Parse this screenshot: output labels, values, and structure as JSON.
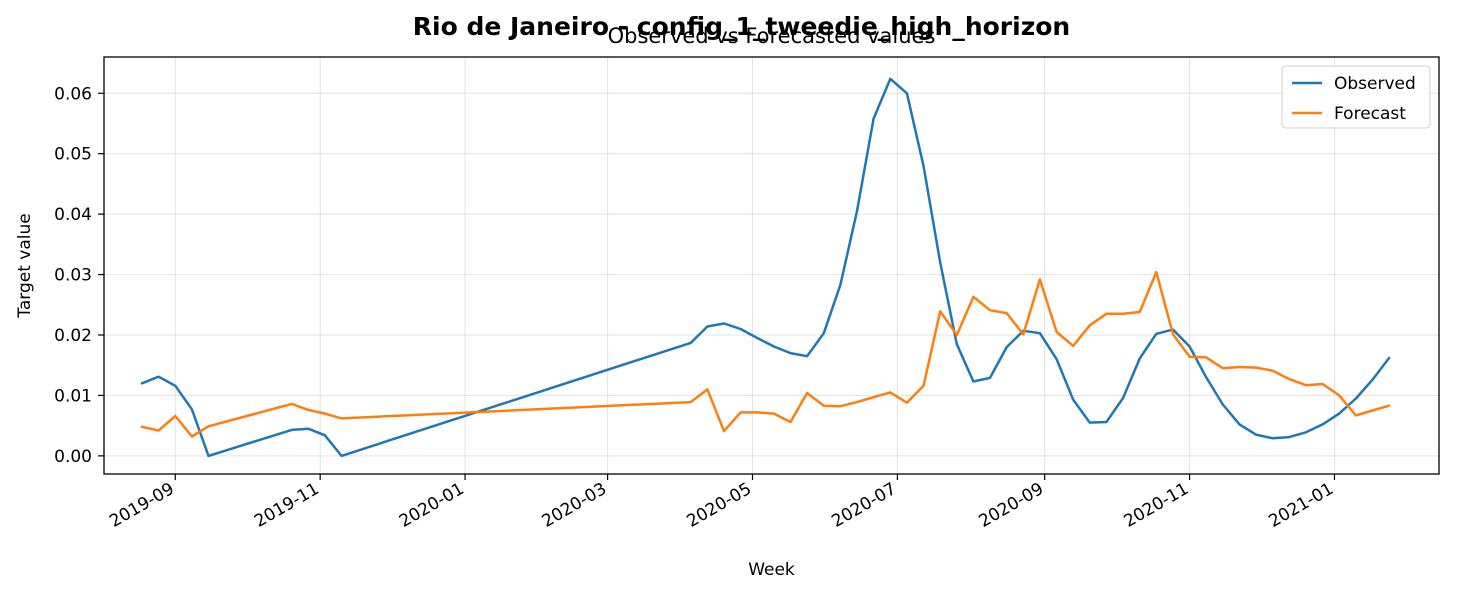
{
  "chart_data": {
    "type": "line",
    "title": "Rio de Janeiro - config_1_tweedie_high_horizon",
    "subtitle": "Observed vs Forecasted values",
    "xlabel": "Week",
    "ylabel": "Target value",
    "x_tick_labels": [
      "2019-09",
      "2019-11",
      "2020-01",
      "2020-03",
      "2020-05",
      "2020-07",
      "2020-09",
      "2020-11",
      "2021-01"
    ],
    "xlim": [
      "2019-08-02",
      "2021-02-14"
    ],
    "ylim": [
      -0.003,
      0.066
    ],
    "y_ticks": [
      0.0,
      0.01,
      0.02,
      0.03,
      0.04,
      0.05,
      0.06
    ],
    "y_tick_labels": [
      "0.00",
      "0.01",
      "0.02",
      "0.03",
      "0.04",
      "0.05",
      "0.06"
    ],
    "grid": true,
    "legend_position": "top-right",
    "series": [
      {
        "name": "Observed",
        "color": "#1f77b4",
        "points": [
          [
            "2019-08-18",
            0.012
          ],
          [
            "2019-08-25",
            0.0131
          ],
          [
            "2019-09-01",
            0.0116
          ],
          [
            "2019-09-08",
            0.0077
          ],
          [
            "2019-09-15",
            0.0
          ],
          [
            "2019-10-20",
            0.0043
          ],
          [
            "2019-10-27",
            0.0045
          ],
          [
            "2019-11-03",
            0.0034
          ],
          [
            "2019-11-10",
            0.0
          ],
          [
            "2020-04-05",
            0.0187
          ],
          [
            "2020-04-12",
            0.0214
          ],
          [
            "2020-04-19",
            0.0219
          ],
          [
            "2020-04-26",
            0.021
          ],
          [
            "2020-05-03",
            0.0195
          ],
          [
            "2020-05-10",
            0.0181
          ],
          [
            "2020-05-17",
            0.017
          ],
          [
            "2020-05-24",
            0.0165
          ],
          [
            "2020-05-31",
            0.0203
          ],
          [
            "2020-06-07",
            0.0283
          ],
          [
            "2020-06-14",
            0.0405
          ],
          [
            "2020-06-21",
            0.0558
          ],
          [
            "2020-06-28",
            0.0624
          ],
          [
            "2020-07-05",
            0.06
          ],
          [
            "2020-07-12",
            0.048
          ],
          [
            "2020-07-19",
            0.032
          ],
          [
            "2020-07-26",
            0.0185
          ],
          [
            "2020-08-02",
            0.0123
          ],
          [
            "2020-08-09",
            0.0129
          ],
          [
            "2020-08-16",
            0.018
          ],
          [
            "2020-08-23",
            0.0207
          ],
          [
            "2020-08-30",
            0.0203
          ],
          [
            "2020-09-06",
            0.016
          ],
          [
            "2020-09-13",
            0.0093
          ],
          [
            "2020-09-20",
            0.0055
          ],
          [
            "2020-09-27",
            0.0056
          ],
          [
            "2020-10-04",
            0.0096
          ],
          [
            "2020-10-11",
            0.0161
          ],
          [
            "2020-10-18",
            0.0202
          ],
          [
            "2020-10-25",
            0.0209
          ],
          [
            "2020-11-01",
            0.0181
          ],
          [
            "2020-11-08",
            0.013
          ],
          [
            "2020-11-15",
            0.0085
          ],
          [
            "2020-11-22",
            0.0052
          ],
          [
            "2020-11-29",
            0.0035
          ],
          [
            "2020-12-06",
            0.0029
          ],
          [
            "2020-12-13",
            0.0031
          ],
          [
            "2020-12-20",
            0.0039
          ],
          [
            "2020-12-27",
            0.0052
          ],
          [
            "2021-01-03",
            0.007
          ],
          [
            "2021-01-10",
            0.0095
          ],
          [
            "2021-01-17",
            0.0126
          ],
          [
            "2021-01-24",
            0.0162
          ]
        ]
      },
      {
        "name": "Forecast",
        "color": "#ff7f0e",
        "points": [
          [
            "2019-08-18",
            0.0048
          ],
          [
            "2019-08-25",
            0.0042
          ],
          [
            "2019-09-01",
            0.0066
          ],
          [
            "2019-09-08",
            0.0032
          ],
          [
            "2019-09-15",
            0.0049
          ],
          [
            "2019-10-20",
            0.0086
          ],
          [
            "2019-10-27",
            0.0076
          ],
          [
            "2019-11-03",
            0.007
          ],
          [
            "2019-11-10",
            0.0062
          ],
          [
            "2020-04-05",
            0.0089
          ],
          [
            "2020-04-12",
            0.011
          ],
          [
            "2020-04-19",
            0.0041
          ],
          [
            "2020-04-26",
            0.0072
          ],
          [
            "2020-05-03",
            0.0072
          ],
          [
            "2020-05-10",
            0.007
          ],
          [
            "2020-05-17",
            0.0056
          ],
          [
            "2020-05-24",
            0.0104
          ],
          [
            "2020-05-31",
            0.0083
          ],
          [
            "2020-06-07",
            0.0082
          ],
          [
            "2020-06-14",
            0.0089
          ],
          [
            "2020-06-21",
            0.0097
          ],
          [
            "2020-06-28",
            0.0105
          ],
          [
            "2020-07-05",
            0.0088
          ],
          [
            "2020-07-12",
            0.0116
          ],
          [
            "2020-07-19",
            0.0239
          ],
          [
            "2020-07-26",
            0.02
          ],
          [
            "2020-08-02",
            0.0263
          ],
          [
            "2020-08-09",
            0.0241
          ],
          [
            "2020-08-16",
            0.0236
          ],
          [
            "2020-08-23",
            0.0201
          ],
          [
            "2020-08-30",
            0.0292
          ],
          [
            "2020-09-06",
            0.0205
          ],
          [
            "2020-09-13",
            0.0182
          ],
          [
            "2020-09-20",
            0.0216
          ],
          [
            "2020-09-27",
            0.0235
          ],
          [
            "2020-10-04",
            0.0235
          ],
          [
            "2020-10-11",
            0.0238
          ],
          [
            "2020-10-18",
            0.0304
          ],
          [
            "2020-10-25",
            0.0201
          ],
          [
            "2020-11-01",
            0.0164
          ],
          [
            "2020-11-08",
            0.0163
          ],
          [
            "2020-11-15",
            0.0145
          ],
          [
            "2020-11-22",
            0.0147
          ],
          [
            "2020-11-29",
            0.0146
          ],
          [
            "2020-12-06",
            0.0141
          ],
          [
            "2020-12-13",
            0.0127
          ],
          [
            "2020-12-20",
            0.0117
          ],
          [
            "2020-12-27",
            0.0119
          ],
          [
            "2021-01-03",
            0.01
          ],
          [
            "2021-01-10",
            0.0067
          ],
          [
            "2021-01-17",
            0.0075
          ],
          [
            "2021-01-24",
            0.0083
          ]
        ]
      }
    ]
  }
}
